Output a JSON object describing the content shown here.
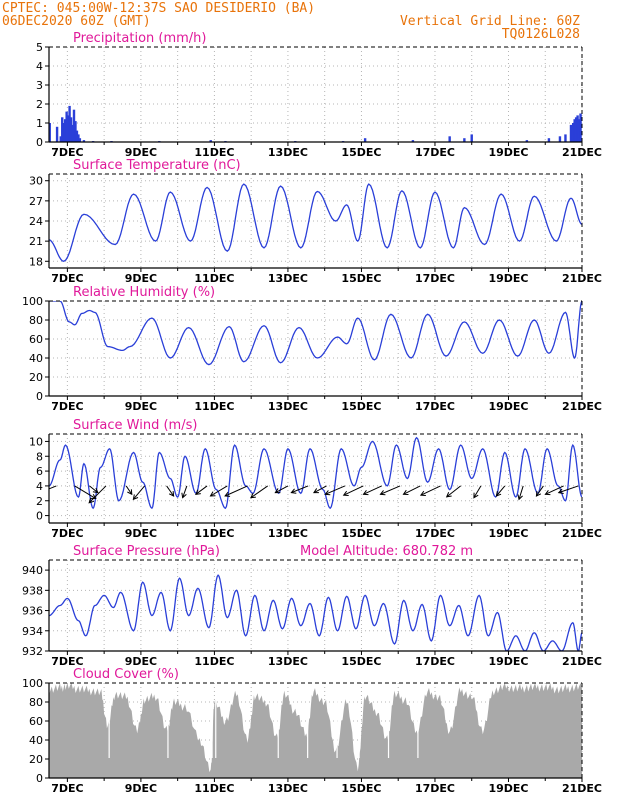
{
  "header": {
    "left_line1": "CPTEC:  045:00W-12:37S  SAO DESIDERIO (BA)",
    "left_line2": "06DEC2020 60Z (GMT)",
    "right_line1": "Vertical Grid Line: 60Z",
    "right_line2": "TQ0126L028"
  },
  "x_ticks": [
    "7DEC",
    "9DEC",
    "11DEC",
    "13DEC",
    "15DEC",
    "17DEC",
    "19DEC",
    "21DEC"
  ],
  "colors": {
    "header": "#e8730a",
    "title": "#e0199a",
    "line": "#2a3fd8",
    "bar": "#2a3fd8",
    "cloud": "#a9a9a9"
  },
  "chart_data": [
    {
      "type": "bar",
      "title": "Precipitation (mm/h)",
      "ylim": [
        0,
        5
      ],
      "yticks": [
        0,
        1,
        2,
        3,
        4,
        5
      ],
      "x_days": [
        6.5,
        21
      ],
      "events": [
        {
          "x": 6.52,
          "y": 1.0
        },
        {
          "x": 6.72,
          "y": 0.8
        },
        {
          "x": 6.82,
          "y": 0.3
        },
        {
          "x": 6.86,
          "y": 1.3
        },
        {
          "x": 6.9,
          "y": 1.0
        },
        {
          "x": 6.94,
          "y": 1.2
        },
        {
          "x": 6.98,
          "y": 1.6
        },
        {
          "x": 7.02,
          "y": 1.4
        },
        {
          "x": 7.06,
          "y": 1.9
        },
        {
          "x": 7.1,
          "y": 1.3
        },
        {
          "x": 7.14,
          "y": 0.9
        },
        {
          "x": 7.18,
          "y": 1.7
        },
        {
          "x": 7.22,
          "y": 1.1
        },
        {
          "x": 7.26,
          "y": 0.6
        },
        {
          "x": 7.3,
          "y": 0.4
        },
        {
          "x": 7.34,
          "y": 0.2
        },
        {
          "x": 7.45,
          "y": 0.1
        },
        {
          "x": 7.7,
          "y": 0.05
        },
        {
          "x": 8.2,
          "y": 0.05
        },
        {
          "x": 9.5,
          "y": 0.05
        },
        {
          "x": 10.9,
          "y": 0.1
        },
        {
          "x": 11.3,
          "y": 0.05
        },
        {
          "x": 13.2,
          "y": 0.05
        },
        {
          "x": 14.5,
          "y": 0.05
        },
        {
          "x": 15.1,
          "y": 0.2
        },
        {
          "x": 16.4,
          "y": 0.1
        },
        {
          "x": 17.4,
          "y": 0.3
        },
        {
          "x": 17.8,
          "y": 0.2
        },
        {
          "x": 18.0,
          "y": 0.4
        },
        {
          "x": 19.5,
          "y": 0.1
        },
        {
          "x": 20.1,
          "y": 0.2
        },
        {
          "x": 20.4,
          "y": 0.3
        },
        {
          "x": 20.55,
          "y": 0.4
        },
        {
          "x": 20.7,
          "y": 0.9
        },
        {
          "x": 20.76,
          "y": 1.0
        },
        {
          "x": 20.8,
          "y": 1.2
        },
        {
          "x": 20.84,
          "y": 1.3
        },
        {
          "x": 20.88,
          "y": 1.4
        },
        {
          "x": 20.92,
          "y": 1.2
        },
        {
          "x": 20.96,
          "y": 1.5
        }
      ]
    },
    {
      "type": "line",
      "title": "Surface Temperature (nC)",
      "ylim": [
        17,
        31
      ],
      "yticks": [
        18,
        21,
        24,
        27,
        30
      ],
      "x_days": [
        6.5,
        21
      ],
      "extrema": [
        [
          6.5,
          21.2
        ],
        [
          6.9,
          18.0
        ],
        [
          7.45,
          25.0
        ],
        [
          8.3,
          20.5
        ],
        [
          8.8,
          28.0
        ],
        [
          9.4,
          21.0
        ],
        [
          9.8,
          28.3
        ],
        [
          10.35,
          21.0
        ],
        [
          10.8,
          29.0
        ],
        [
          11.35,
          19.5
        ],
        [
          11.8,
          29.5
        ],
        [
          12.35,
          20.0
        ],
        [
          12.8,
          29.2
        ],
        [
          13.35,
          20.0
        ],
        [
          13.8,
          28.4
        ],
        [
          14.3,
          24.0
        ],
        [
          14.6,
          26.4
        ],
        [
          14.9,
          21.0
        ],
        [
          15.2,
          29.5
        ],
        [
          15.7,
          20.0
        ],
        [
          16.1,
          28.5
        ],
        [
          16.6,
          20.0
        ],
        [
          17.0,
          28.3
        ],
        [
          17.5,
          20.0
        ],
        [
          17.8,
          26.0
        ],
        [
          18.35,
          20.5
        ],
        [
          18.8,
          28.0
        ],
        [
          19.3,
          21.0
        ],
        [
          19.7,
          27.7
        ],
        [
          20.3,
          21.0
        ],
        [
          20.7,
          27.4
        ],
        [
          21.0,
          23.5
        ]
      ]
    },
    {
      "type": "line",
      "title": "Relative Humidity (%)",
      "ylim": [
        0,
        100
      ],
      "yticks": [
        0,
        20,
        40,
        60,
        80,
        100
      ],
      "x_days": [
        6.5,
        21
      ],
      "extrema": [
        [
          6.5,
          100
        ],
        [
          6.8,
          100
        ],
        [
          7.05,
          78
        ],
        [
          7.2,
          75
        ],
        [
          7.4,
          87
        ],
        [
          7.6,
          90
        ],
        [
          7.75,
          88
        ],
        [
          8.1,
          52
        ],
        [
          8.5,
          48
        ],
        [
          8.7,
          52
        ],
        [
          9.3,
          82
        ],
        [
          9.8,
          40
        ],
        [
          10.3,
          72
        ],
        [
          10.85,
          33
        ],
        [
          11.4,
          73
        ],
        [
          11.8,
          36
        ],
        [
          12.35,
          74
        ],
        [
          12.8,
          35
        ],
        [
          13.3,
          72
        ],
        [
          13.8,
          40
        ],
        [
          14.35,
          62
        ],
        [
          14.6,
          55
        ],
        [
          14.9,
          82
        ],
        [
          15.35,
          38
        ],
        [
          15.8,
          86
        ],
        [
          16.35,
          40
        ],
        [
          16.8,
          86
        ],
        [
          17.3,
          42
        ],
        [
          17.8,
          78
        ],
        [
          18.3,
          45
        ],
        [
          18.75,
          80
        ],
        [
          19.25,
          42
        ],
        [
          19.7,
          80
        ],
        [
          20.1,
          45
        ],
        [
          20.55,
          88
        ],
        [
          20.8,
          40
        ],
        [
          21.0,
          100
        ]
      ]
    },
    {
      "type": "line",
      "title": "Surface Wind (m/s)",
      "ylim": [
        -1,
        11
      ],
      "yticks": [
        0,
        2,
        4,
        6,
        8,
        10
      ],
      "x_days": [
        6.5,
        21
      ],
      "extrema": [
        [
          6.5,
          4.0
        ],
        [
          6.8,
          7.5
        ],
        [
          6.95,
          9.5
        ],
        [
          7.3,
          2.5
        ],
        [
          7.45,
          7.0
        ],
        [
          7.7,
          1.0
        ],
        [
          7.9,
          6.5
        ],
        [
          8.15,
          9.0
        ],
        [
          8.4,
          2.0
        ],
        [
          8.8,
          8.5
        ],
        [
          9.05,
          4.5
        ],
        [
          9.3,
          1.0
        ],
        [
          9.5,
          8.5
        ],
        [
          9.8,
          5.0
        ],
        [
          10.0,
          2.5
        ],
        [
          10.2,
          8.0
        ],
        [
          10.5,
          3.0
        ],
        [
          10.75,
          9.0
        ],
        [
          11.05,
          3.5
        ],
        [
          11.3,
          1.0
        ],
        [
          11.55,
          9.5
        ],
        [
          11.85,
          4.0
        ],
        [
          12.05,
          3.0
        ],
        [
          12.35,
          9.0
        ],
        [
          12.75,
          3.0
        ],
        [
          13.0,
          9.0
        ],
        [
          13.35,
          3.0
        ],
        [
          13.6,
          9.0
        ],
        [
          13.95,
          3.5
        ],
        [
          14.15,
          1.0
        ],
        [
          14.45,
          9.0
        ],
        [
          14.8,
          4.0
        ],
        [
          15.0,
          6.5
        ],
        [
          15.3,
          10.0
        ],
        [
          15.7,
          4.0
        ],
        [
          15.95,
          9.5
        ],
        [
          16.25,
          5.0
        ],
        [
          16.5,
          10.5
        ],
        [
          16.8,
          4.5
        ],
        [
          17.1,
          9.0
        ],
        [
          17.4,
          3.5
        ],
        [
          17.7,
          9.5
        ],
        [
          18.0,
          5.0
        ],
        [
          18.3,
          9.0
        ],
        [
          18.65,
          2.5
        ],
        [
          18.9,
          8.5
        ],
        [
          19.2,
          2.5
        ],
        [
          19.45,
          9.0
        ],
        [
          19.8,
          3.0
        ],
        [
          20.05,
          9.0
        ],
        [
          20.35,
          4.0
        ],
        [
          20.55,
          2.0
        ],
        [
          20.75,
          9.5
        ],
        [
          21.0,
          2.5
        ]
      ],
      "arrows": [
        [
          6.7,
          -1.8,
          1.2
        ],
        [
          7.2,
          1.5,
          1.5
        ],
        [
          7.6,
          0.6,
          0.8
        ],
        [
          8.05,
          -1.2,
          2.0
        ],
        [
          8.6,
          0.4,
          1.0
        ],
        [
          9.1,
          -0.8,
          1.6
        ],
        [
          9.7,
          0.5,
          1.2
        ],
        [
          10.25,
          -0.3,
          1.4
        ],
        [
          10.8,
          -0.8,
          1.0
        ],
        [
          11.35,
          -1.2,
          1.2
        ],
        [
          11.9,
          -1.6,
          1.2
        ],
        [
          12.45,
          -1.2,
          1.4
        ],
        [
          13.0,
          -0.9,
          0.8
        ],
        [
          13.55,
          -1.2,
          0.8
        ],
        [
          14.05,
          -0.9,
          0.8
        ],
        [
          14.55,
          -1.4,
          1.0
        ],
        [
          15.05,
          -1.4,
          1.1
        ],
        [
          15.55,
          -1.3,
          1.0
        ],
        [
          16.05,
          -1.4,
          1.0
        ],
        [
          16.6,
          -1.2,
          1.0
        ],
        [
          17.15,
          -1.4,
          1.1
        ],
        [
          17.7,
          -1.0,
          1.3
        ],
        [
          18.25,
          -0.5,
          1.4
        ],
        [
          18.9,
          -0.6,
          1.2
        ],
        [
          19.4,
          -0.3,
          1.6
        ],
        [
          19.95,
          -0.5,
          1.2
        ],
        [
          20.5,
          -1.3,
          1.0
        ],
        [
          20.9,
          -1.4,
          0.8
        ]
      ]
    },
    {
      "type": "line",
      "title": "Surface Pressure (hPa)",
      "annotation": "Model Altitude: 680.782 m",
      "ylim": [
        932,
        941
      ],
      "yticks": [
        932,
        934,
        936,
        938,
        940
      ],
      "x_days": [
        6.5,
        21
      ],
      "extrema": [
        [
          6.5,
          935.5
        ],
        [
          6.8,
          936.5
        ],
        [
          7.0,
          937.2
        ],
        [
          7.3,
          935.0
        ],
        [
          7.5,
          933.5
        ],
        [
          7.75,
          936.5
        ],
        [
          8.0,
          937.5
        ],
        [
          8.25,
          936.3
        ],
        [
          8.45,
          937.8
        ],
        [
          8.8,
          934.0
        ],
        [
          9.05,
          938.8
        ],
        [
          9.3,
          935.5
        ],
        [
          9.55,
          937.8
        ],
        [
          9.8,
          934.0
        ],
        [
          10.05,
          939.2
        ],
        [
          10.3,
          935.5
        ],
        [
          10.55,
          938.2
        ],
        [
          10.85,
          934.3
        ],
        [
          11.1,
          939.5
        ],
        [
          11.35,
          935.3
        ],
        [
          11.6,
          938.0
        ],
        [
          11.85,
          933.5
        ],
        [
          12.1,
          937.5
        ],
        [
          12.35,
          934.0
        ],
        [
          12.6,
          937.0
        ],
        [
          12.85,
          934.2
        ],
        [
          13.1,
          937.2
        ],
        [
          13.35,
          934.5
        ],
        [
          13.6,
          936.7
        ],
        [
          13.85,
          933.5
        ],
        [
          14.1,
          937.3
        ],
        [
          14.35,
          934.0
        ],
        [
          14.6,
          937.4
        ],
        [
          14.85,
          934.2
        ],
        [
          15.1,
          937.5
        ],
        [
          15.35,
          934.5
        ],
        [
          15.6,
          936.7
        ],
        [
          15.9,
          932.7
        ],
        [
          16.15,
          937.0
        ],
        [
          16.4,
          934.0
        ],
        [
          16.65,
          936.6
        ],
        [
          16.9,
          933.0
        ],
        [
          17.15,
          937.5
        ],
        [
          17.4,
          934.5
        ],
        [
          17.65,
          936.5
        ],
        [
          17.9,
          933.5
        ],
        [
          18.2,
          937.5
        ],
        [
          18.45,
          933.5
        ],
        [
          18.7,
          935.8
        ],
        [
          18.95,
          932.0
        ],
        [
          19.2,
          933.5
        ],
        [
          19.45,
          932.0
        ],
        [
          19.7,
          933.8
        ],
        [
          19.95,
          932.0
        ],
        [
          20.2,
          933.0
        ],
        [
          20.45,
          932.0
        ],
        [
          20.75,
          934.8
        ],
        [
          20.9,
          932.0
        ],
        [
          21.0,
          933.8
        ]
      ]
    },
    {
      "type": "area",
      "title": "Cloud Cover (%)",
      "ylim": [
        0,
        100
      ],
      "yticks": [
        0,
        20,
        40,
        60,
        80,
        100
      ],
      "x_days": [
        6.5,
        21
      ],
      "profile": [
        [
          6.5,
          93
        ],
        [
          6.8,
          95
        ],
        [
          7.0,
          97
        ],
        [
          7.3,
          94
        ],
        [
          7.6,
          92
        ],
        [
          7.9,
          90
        ],
        [
          8.1,
          55
        ],
        [
          8.3,
          88
        ],
        [
          8.6,
          85
        ],
        [
          8.9,
          50
        ],
        [
          9.1,
          82
        ],
        [
          9.4,
          86
        ],
        [
          9.7,
          50
        ],
        [
          9.9,
          80
        ],
        [
          10.2,
          75
        ],
        [
          10.6,
          40
        ],
        [
          10.9,
          8
        ],
        [
          11.0,
          80
        ],
        [
          11.3,
          60
        ],
        [
          11.6,
          88
        ],
        [
          11.9,
          40
        ],
        [
          12.1,
          86
        ],
        [
          12.4,
          80
        ],
        [
          12.7,
          42
        ],
        [
          12.9,
          88
        ],
        [
          13.2,
          70
        ],
        [
          13.5,
          45
        ],
        [
          13.7,
          90
        ],
        [
          14.0,
          80
        ],
        [
          14.3,
          30
        ],
        [
          14.6,
          80
        ],
        [
          14.9,
          10
        ],
        [
          15.1,
          86
        ],
        [
          15.4,
          70
        ],
        [
          15.7,
          40
        ],
        [
          15.9,
          88
        ],
        [
          16.2,
          82
        ],
        [
          16.5,
          48
        ],
        [
          16.8,
          90
        ],
        [
          17.1,
          85
        ],
        [
          17.4,
          50
        ],
        [
          17.7,
          92
        ],
        [
          18.0,
          85
        ],
        [
          18.3,
          50
        ],
        [
          18.6,
          92
        ],
        [
          18.9,
          96
        ],
        [
          19.2,
          94
        ],
        [
          19.5,
          95
        ],
        [
          19.8,
          96
        ],
        [
          20.1,
          95
        ],
        [
          20.4,
          93
        ],
        [
          20.7,
          95
        ],
        [
          21.0,
          96
        ]
      ]
    }
  ]
}
